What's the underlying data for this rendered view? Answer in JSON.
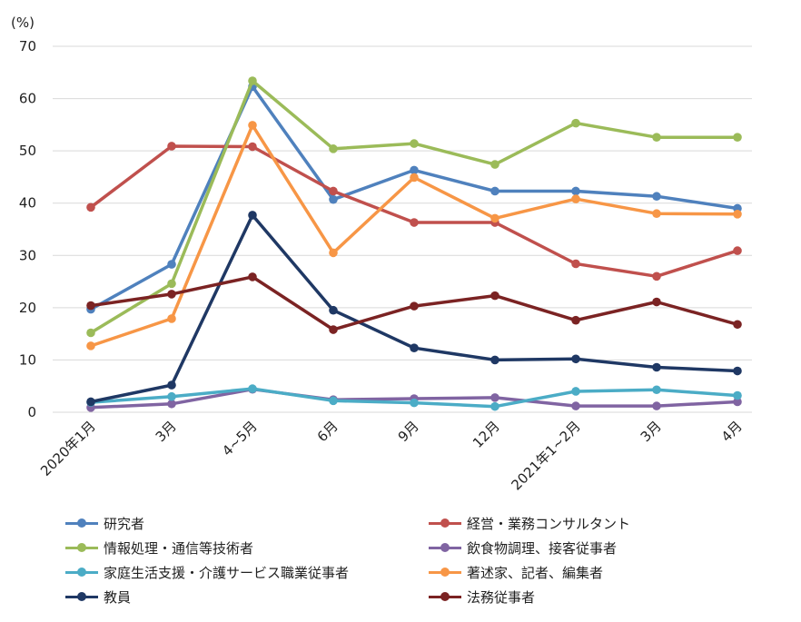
{
  "chart_data": {
    "type": "line",
    "unit_label": "(%)",
    "categories": [
      "2020年1月",
      "3月",
      "4~5月",
      "6月",
      "9月",
      "12月",
      "2021年1~2月",
      "3月",
      "4月"
    ],
    "ylim": [
      0,
      70
    ],
    "yticks": [
      0,
      10,
      20,
      30,
      40,
      50,
      60,
      70
    ],
    "grid": true,
    "legend_position": "bottom",
    "series": [
      {
        "name": "研究者",
        "color": "#4f81bd",
        "values": [
          19.7,
          28.3,
          62.3,
          40.7,
          46.3,
          42.3,
          42.3,
          41.3,
          39.0
        ]
      },
      {
        "name": "経営・業務コンサルタント",
        "color": "#c0504d",
        "values": [
          39.2,
          50.9,
          50.8,
          42.3,
          36.3,
          36.3,
          28.4,
          26.0,
          30.9
        ]
      },
      {
        "name": "情報処理・通信等技術者",
        "color": "#9bbb59",
        "values": [
          15.2,
          24.6,
          63.4,
          50.4,
          51.4,
          47.4,
          55.3,
          52.6,
          52.6
        ]
      },
      {
        "name": "飲食物調理、接客従事者",
        "color": "#8064a2",
        "values": [
          0.9,
          1.6,
          4.4,
          2.4,
          2.6,
          2.8,
          1.2,
          1.2,
          2.0
        ]
      },
      {
        "name": "家庭生活支援・介護サービス職業従事者",
        "color": "#4bacc6",
        "values": [
          1.9,
          3.0,
          4.5,
          2.2,
          1.8,
          1.1,
          4.0,
          4.3,
          3.2
        ]
      },
      {
        "name": "著述家、記者、編集者",
        "color": "#f79646",
        "values": [
          12.7,
          17.9,
          54.9,
          30.5,
          44.9,
          37.1,
          40.8,
          38.0,
          37.9
        ]
      },
      {
        "name": "教員",
        "color": "#1f3864",
        "values": [
          2.0,
          5.2,
          37.7,
          19.5,
          12.3,
          10.0,
          10.2,
          8.6,
          7.9
        ]
      },
      {
        "name": "法務従事者",
        "color": "#7b2323",
        "values": [
          20.4,
          22.6,
          25.9,
          15.8,
          20.3,
          22.3,
          17.6,
          21.1,
          16.8
        ]
      }
    ]
  }
}
